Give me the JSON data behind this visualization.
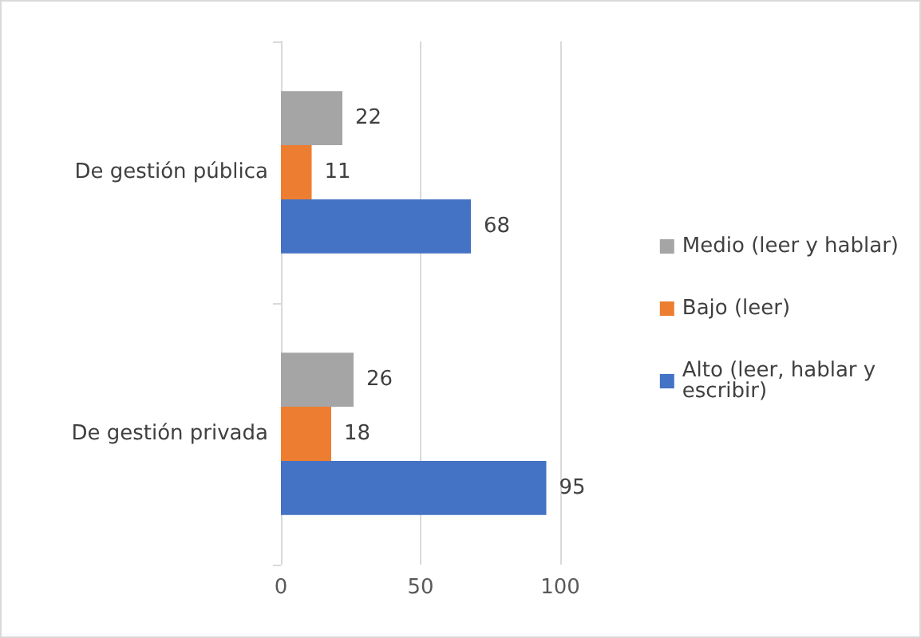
{
  "chart_data": {
    "type": "bar",
    "orientation": "horizontal",
    "categories": [
      "De gestión pública",
      "De gestión privada"
    ],
    "series": [
      {
        "name": "Medio (leer y hablar)",
        "color": "#a5a5a5",
        "values": [
          22,
          26
        ]
      },
      {
        "name": "Bajo (leer)",
        "color": "#ed7d31",
        "values": [
          11,
          18
        ]
      },
      {
        "name": "Alto (leer, hablar y escribir)",
        "color": "#4472c4",
        "values": [
          68,
          95
        ]
      }
    ],
    "xlim": [
      0,
      100
    ],
    "xticks": [
      0,
      50,
      100
    ],
    "grid": "x",
    "legend": "right",
    "data_labels": true
  }
}
